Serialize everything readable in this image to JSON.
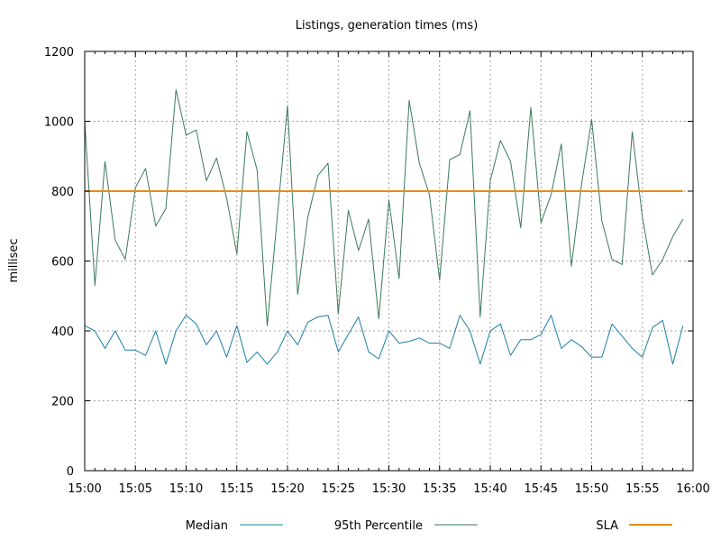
{
  "chart_data": {
    "type": "line",
    "title": "Listings, generation times (ms)",
    "xlabel": "",
    "ylabel": "millisec",
    "ylim": [
      0,
      1200
    ],
    "xlim": [
      "15:00",
      "16:00"
    ],
    "grid": true,
    "legend_position": "bottom",
    "x_ticks": [
      "15:00",
      "15:05",
      "15:10",
      "15:15",
      "15:20",
      "15:25",
      "15:30",
      "15:35",
      "15:40",
      "15:45",
      "15:50",
      "15:55",
      "16:00"
    ],
    "y_ticks": [
      0,
      200,
      400,
      600,
      800,
      1000,
      1200
    ],
    "x": [
      "15:00",
      "15:01",
      "15:02",
      "15:03",
      "15:04",
      "15:05",
      "15:06",
      "15:07",
      "15:08",
      "15:09",
      "15:10",
      "15:11",
      "15:12",
      "15:13",
      "15:14",
      "15:15",
      "15:16",
      "15:17",
      "15:18",
      "15:19",
      "15:20",
      "15:21",
      "15:22",
      "15:23",
      "15:24",
      "15:25",
      "15:26",
      "15:27",
      "15:28",
      "15:29",
      "15:30",
      "15:31",
      "15:32",
      "15:33",
      "15:34",
      "15:35",
      "15:36",
      "15:37",
      "15:38",
      "15:39",
      "15:40",
      "15:41",
      "15:42",
      "15:43",
      "15:44",
      "15:45",
      "15:46",
      "15:47",
      "15:48",
      "15:49",
      "15:50",
      "15:51",
      "15:52",
      "15:53",
      "15:54",
      "15:55",
      "15:56",
      "15:57",
      "15:58",
      "15:59"
    ],
    "series": [
      {
        "name": "Median",
        "color": "#1a7fa6",
        "values": [
          415,
          400,
          350,
          400,
          345,
          345,
          330,
          400,
          305,
          400,
          445,
          420,
          360,
          400,
          325,
          415,
          310,
          340,
          305,
          340,
          400,
          360,
          425,
          440,
          445,
          340,
          390,
          440,
          340,
          320,
          400,
          365,
          370,
          380,
          365,
          365,
          350,
          445,
          400,
          305,
          400,
          420,
          330,
          375,
          375,
          390,
          445,
          350,
          375,
          355,
          325,
          325,
          420,
          385,
          350,
          325,
          410,
          430,
          305,
          415
        ]
      },
      {
        "name": "95th Percentile",
        "color": "#3a7a5a",
        "values": [
          1000,
          530,
          885,
          660,
          605,
          810,
          865,
          700,
          750,
          1090,
          960,
          975,
          830,
          895,
          780,
          620,
          970,
          860,
          415,
          730,
          1045,
          505,
          725,
          845,
          880,
          450,
          745,
          630,
          720,
          435,
          775,
          550,
          1060,
          880,
          790,
          545,
          890,
          905,
          1030,
          440,
          830,
          945,
          885,
          695,
          1040,
          710,
          790,
          935,
          585,
          820,
          1005,
          715,
          605,
          590,
          970,
          725,
          560,
          605,
          670,
          720
        ]
      },
      {
        "name": "SLA",
        "color": "#ea8a1a",
        "values": [
          800,
          800,
          800,
          800,
          800,
          800,
          800,
          800,
          800,
          800,
          800,
          800,
          800,
          800,
          800,
          800,
          800,
          800,
          800,
          800,
          800,
          800,
          800,
          800,
          800,
          800,
          800,
          800,
          800,
          800,
          800,
          800,
          800,
          800,
          800,
          800,
          800,
          800,
          800,
          800,
          800,
          800,
          800,
          800,
          800,
          800,
          800,
          800,
          800,
          800,
          800,
          800,
          800,
          800,
          800,
          800,
          800,
          800,
          800,
          800
        ]
      }
    ]
  }
}
